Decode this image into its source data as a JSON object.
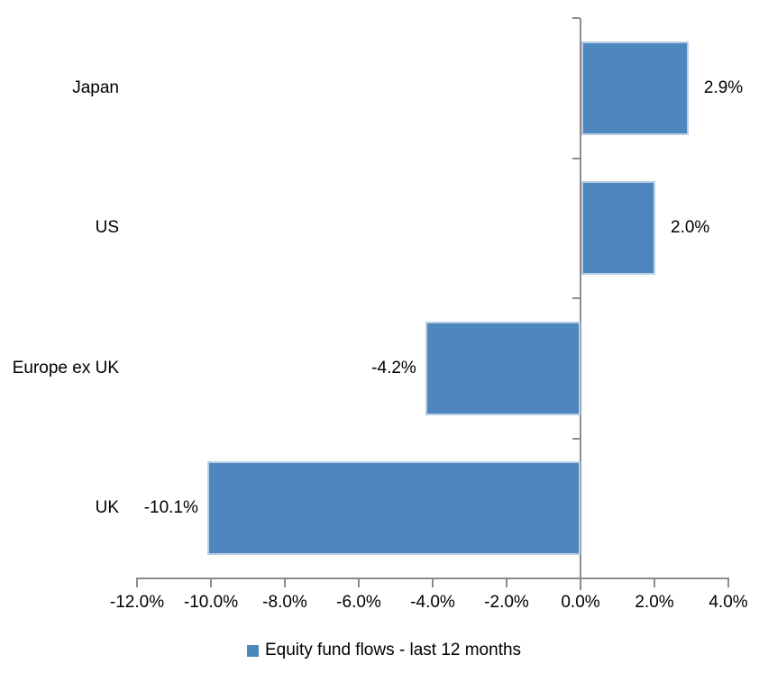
{
  "chart_data": {
    "type": "bar",
    "orientation": "horizontal",
    "title": "",
    "categories": [
      "Japan",
      "US",
      "Europe ex UK",
      "UK"
    ],
    "values": [
      2.9,
      2.0,
      -4.2,
      -10.1
    ],
    "data_labels": [
      "2.9%",
      "2.0%",
      "-4.2%",
      "-10.1%"
    ],
    "series_name": "Equity fund flows - last 12 months",
    "xlabel": "",
    "ylabel": "",
    "xlim": [
      -12,
      4
    ],
    "x_tick_step": 2,
    "x_tick_labels": [
      "-12.0%",
      "-10.0%",
      "-8.0%",
      "-6.0%",
      "-4.0%",
      "-2.0%",
      "0.0%",
      "2.0%",
      "4.0%"
    ],
    "grid": "off",
    "legend_position": "bottom",
    "bar_color": "#4e87be",
    "bar_border_color": "#b9cde3",
    "axis_color": "#8c8c8c",
    "text_color": "#000000"
  },
  "legend": {
    "marker_color": "#4e87be",
    "label": "Equity fund flows - last 12 months"
  }
}
